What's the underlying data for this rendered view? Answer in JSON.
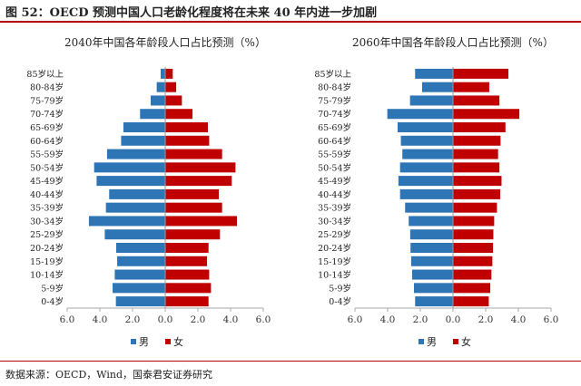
{
  "figure_title": "图 52：OECD 预测中国人口老龄化程度将在未来 40 年内进一步加剧",
  "source": "数据来源：OECD，Wind，国泰君安证券研究",
  "colors": {
    "male": "#2e75b6",
    "female": "#c00000"
  },
  "chart_data": [
    {
      "type": "bar",
      "orientation": "horizontal",
      "title": "2040年中国各年龄段人口占比预测（%）",
      "categories": [
        "85岁以上",
        "80-84岁",
        "75-79岁",
        "70-74岁",
        "65-69岁",
        "60-64岁",
        "55-59岁",
        "50-54岁",
        "45-49岁",
        "40-44岁",
        "35-39岁",
        "30-34岁",
        "25-29岁",
        "20-24岁",
        "15-19岁",
        "10-14岁",
        "5-9岁",
        "0-4岁"
      ],
      "xticks": [
        "6.0",
        "4.0",
        "2.0",
        "0.0",
        "2.0",
        "4.0",
        "6.0"
      ],
      "xlim": [
        -6,
        6
      ],
      "legend": "bottom",
      "series": [
        {
          "name": "男",
          "values": [
            0.28,
            0.52,
            0.89,
            1.54,
            2.56,
            2.7,
            3.56,
            4.35,
            4.2,
            3.43,
            3.63,
            4.67,
            3.7,
            3.0,
            2.94,
            3.09,
            3.22,
            3.02
          ]
        },
        {
          "name": "女",
          "values": [
            0.46,
            0.67,
            1.02,
            1.67,
            2.61,
            2.69,
            3.48,
            4.3,
            4.07,
            3.28,
            3.48,
            4.39,
            3.35,
            2.65,
            2.56,
            2.69,
            2.8,
            2.65
          ]
        }
      ]
    },
    {
      "type": "bar",
      "orientation": "horizontal",
      "title": "2060年中国各年龄段人口占比预测（%）",
      "categories": [
        "85岁以上",
        "80-84岁",
        "75-79岁",
        "70-74岁",
        "65-69岁",
        "60-64岁",
        "55-59岁",
        "50-54岁",
        "45-49岁",
        "40-44岁",
        "35-39岁",
        "30-34岁",
        "25-29岁",
        "20-24岁",
        "15-19岁",
        "10-14岁",
        "5-9岁",
        "0-4岁"
      ],
      "xticks": [
        "6.0",
        "4.0",
        "2.0",
        "0.0",
        "2.0",
        "4.0",
        "6.0"
      ],
      "xlim": [
        -6,
        6
      ],
      "legend": "bottom",
      "series": [
        {
          "name": "男",
          "values": [
            2.32,
            1.89,
            2.63,
            4.02,
            3.39,
            3.19,
            3.1,
            3.24,
            3.34,
            3.24,
            2.93,
            2.71,
            2.62,
            2.6,
            2.56,
            2.5,
            2.39,
            2.32
          ]
        },
        {
          "name": "女",
          "values": [
            3.39,
            2.22,
            2.84,
            4.06,
            3.21,
            2.91,
            2.76,
            2.84,
            2.97,
            2.89,
            2.69,
            2.52,
            2.47,
            2.45,
            2.41,
            2.35,
            2.28,
            2.19
          ]
        }
      ]
    }
  ]
}
